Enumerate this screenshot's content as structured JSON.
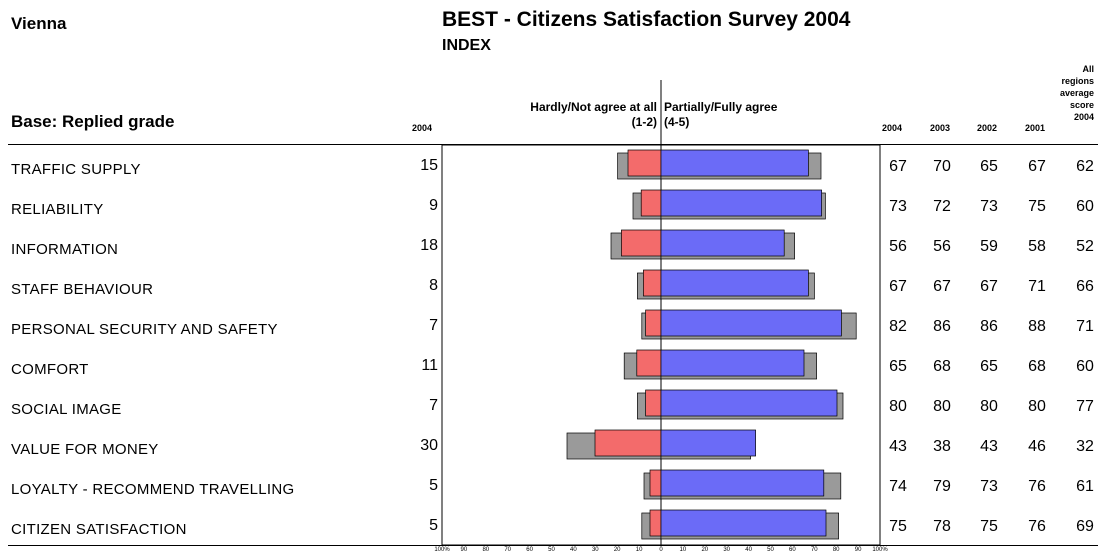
{
  "header": {
    "city": "Vienna",
    "title": "BEST - Citizens Satisfaction Survey 2004",
    "subtitle": "INDEX",
    "base": "Base: Replied grade",
    "col_2004_left": "2004",
    "neg_label_line1": "Hardly/Not agree at all",
    "neg_label_line2": "(1-2)",
    "pos_label_line1": "Partially/Fully agree",
    "pos_label_line2": "(4-5)",
    "years": [
      "2004",
      "2003",
      "2002",
      "2001"
    ],
    "all_regions": [
      "All",
      "regions",
      "average",
      "score",
      "2004"
    ]
  },
  "colors": {
    "negative": "#f36b6b",
    "positive": "#6b6bf7",
    "shadow": "#9a9a9a"
  },
  "chart_data": {
    "type": "bar",
    "title": "BEST - Citizens Satisfaction Survey 2004",
    "xlabel": "",
    "ylabel": "",
    "xlim": [
      -100,
      100
    ],
    "x_ticks": [
      "100%",
      "90",
      "80",
      "70",
      "60",
      "50",
      "40",
      "30",
      "20",
      "10",
      "0",
      "10",
      "20",
      "30",
      "40",
      "50",
      "60",
      "70",
      "80",
      "90",
      "100%"
    ],
    "categories": [
      "TRAFFIC SUPPLY",
      "RELIABILITY",
      "INFORMATION",
      "STAFF BEHAVIOUR",
      "PERSONAL SECURITY AND SAFETY",
      "COMFORT",
      "SOCIAL IMAGE",
      "VALUE FOR MONEY",
      "LOYALTY - RECOMMEND TRAVELLING",
      "CITIZEN SATISFACTION"
    ],
    "series": [
      {
        "name": "Hardly/Not agree at all (1-2)",
        "values": [
          15,
          9,
          18,
          8,
          7,
          11,
          7,
          30,
          5,
          5
        ]
      },
      {
        "name": "Partially/Fully agree (4-5)",
        "values": [
          67,
          73,
          56,
          67,
          82,
          65,
          80,
          43,
          74,
          75
        ]
      }
    ],
    "prior_year_shadow": {
      "negative": [
        17,
        10,
        20,
        8,
        6,
        14,
        8,
        40,
        5,
        6
      ],
      "positive": [
        70,
        72,
        58,
        67,
        86,
        68,
        80,
        38,
        79,
        78
      ]
    },
    "table": {
      "columns": [
        "2004",
        "2003",
        "2002",
        "2001",
        "All regions average score 2004"
      ],
      "rows": [
        [
          67,
          70,
          65,
          67,
          62
        ],
        [
          73,
          72,
          73,
          75,
          60
        ],
        [
          56,
          56,
          59,
          58,
          52
        ],
        [
          67,
          67,
          67,
          71,
          66
        ],
        [
          82,
          86,
          86,
          88,
          71
        ],
        [
          65,
          68,
          65,
          68,
          60
        ],
        [
          80,
          80,
          80,
          80,
          77
        ],
        [
          43,
          38,
          43,
          46,
          32
        ],
        [
          74,
          79,
          73,
          76,
          61
        ],
        [
          75,
          78,
          75,
          76,
          69
        ]
      ]
    }
  }
}
